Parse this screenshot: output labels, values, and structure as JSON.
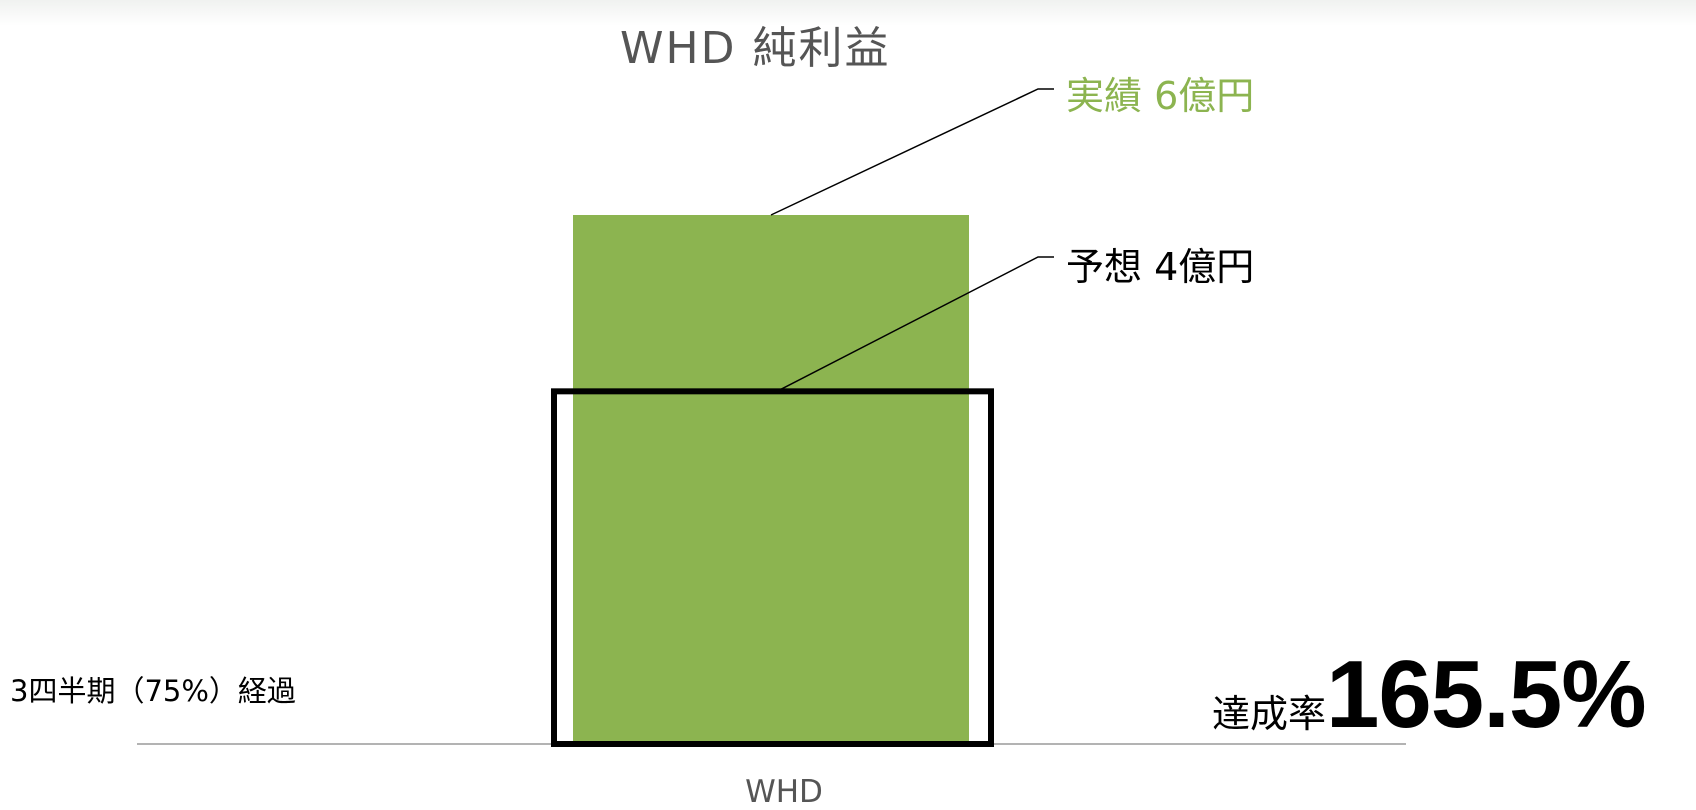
{
  "chart_data": {
    "type": "bar",
    "title": "WHD 純利益",
    "categories": [
      "WHD"
    ],
    "series": [
      {
        "name": "実績",
        "values": [
          6
        ]
      },
      {
        "name": "予想",
        "values": [
          4
        ]
      }
    ],
    "annotations": {
      "actual_label": "実績 6億円",
      "forecast_label": "予想 4億円",
      "elapsed_note": "3四半期（75%）経過",
      "achievement_label": "達成率",
      "achievement_value": "165.5%"
    },
    "colors": {
      "actual_bar": "#8cb450",
      "forecast_outline": "#000000",
      "axis": "#9a9a9a",
      "title": "#555555"
    },
    "ylim": [
      0,
      6.5
    ],
    "grid": false,
    "legend": "none"
  }
}
